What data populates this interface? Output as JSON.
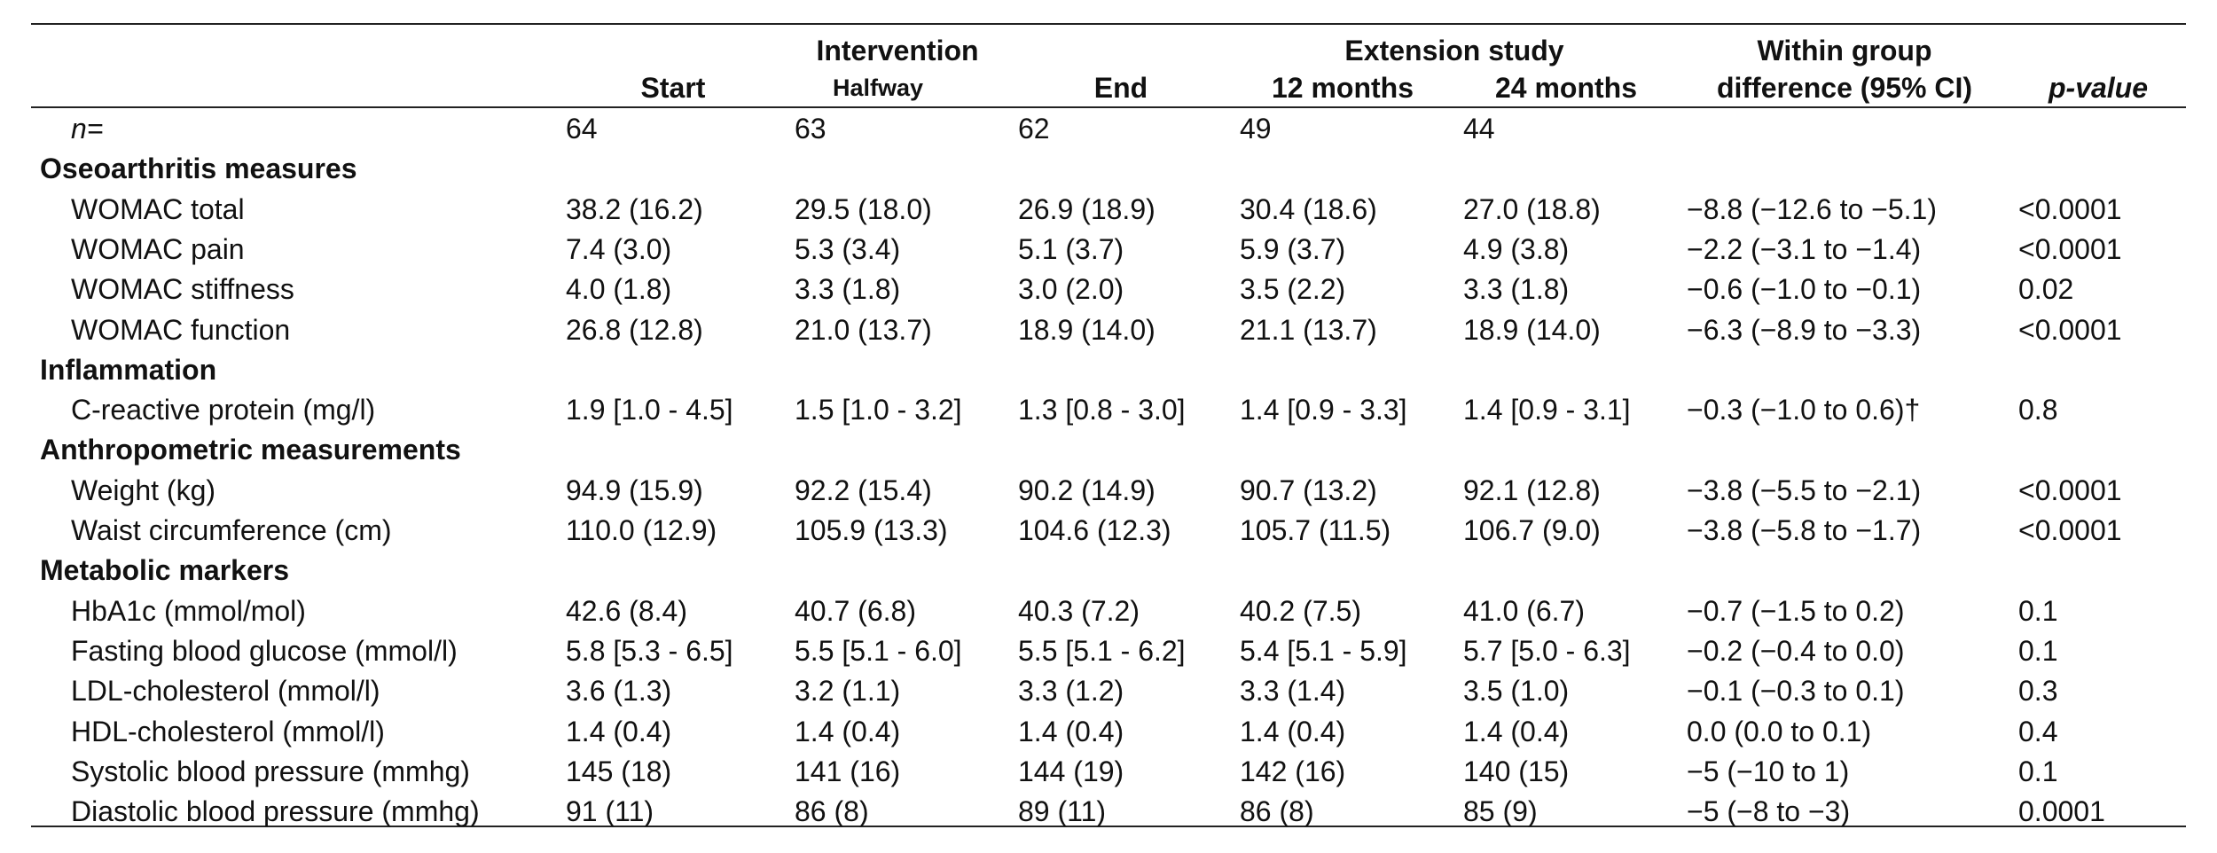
{
  "header": {
    "intervention": "Intervention",
    "extension": "Extension study",
    "columns": [
      "Start",
      "Halfway",
      "End",
      "12 months",
      "24 months"
    ],
    "difference": [
      "Within group",
      "difference (95% CI)"
    ],
    "p_value": "p-value"
  },
  "rows": [
    {
      "label": "n=",
      "cells": [
        "64",
        "63",
        "62",
        "49",
        "44",
        "",
        ""
      ]
    },
    {
      "heading": "Oseoarthritis measures"
    },
    {
      "label": "WOMAC total",
      "cells": [
        "38.2 (16.2)",
        "29.5 (18.0)",
        "26.9 (18.9)",
        "30.4 (18.6)",
        "27.0 (18.8)",
        "−8.8 (−12.6 to −5.1)",
        "<0.0001"
      ]
    },
    {
      "label": "WOMAC pain",
      "cells": [
        "7.4 (3.0)",
        "5.3 (3.4)",
        "5.1 (3.7)",
        "5.9 (3.7)",
        "4.9 (3.8)",
        "−2.2 (−3.1 to −1.4)",
        "<0.0001"
      ]
    },
    {
      "label": "WOMAC stiffness",
      "cells": [
        "4.0 (1.8)",
        "3.3 (1.8)",
        "3.0 (2.0)",
        "3.5 (2.2)",
        "3.3 (1.8)",
        "−0.6 (−1.0 to −0.1)",
        "0.02"
      ]
    },
    {
      "label": "WOMAC function",
      "cells": [
        "26.8 (12.8)",
        "21.0 (13.7)",
        "18.9 (14.0)",
        "21.1 (13.7)",
        "18.9 (14.0)",
        "−6.3 (−8.9 to −3.3)",
        "<0.0001"
      ]
    },
    {
      "heading": "Inflammation"
    },
    {
      "label": "C-reactive protein (mg/l)",
      "cells": [
        "1.9 [1.0 - 4.5]",
        "1.5 [1.0 - 3.2]",
        "1.3 [0.8 - 3.0]",
        "1.4 [0.9 - 3.3]",
        "1.4 [0.9 - 3.1]",
        "−0.3 (−1.0 to 0.6)†",
        "0.8"
      ]
    },
    {
      "heading": "Anthropometric measurements"
    },
    {
      "label": "Weight (kg)",
      "cells": [
        "94.9 (15.9)",
        "92.2 (15.4)",
        "90.2 (14.9)",
        "90.7 (13.2)",
        "92.1 (12.8)",
        "−3.8 (−5.5 to −2.1)",
        "<0.0001"
      ]
    },
    {
      "label": "Waist circumference (cm)",
      "cells": [
        "110.0 (12.9)",
        "105.9 (13.3)",
        "104.6 (12.3)",
        "105.7 (11.5)",
        "106.7 (9.0)",
        "−3.8 (−5.8 to −1.7)",
        "<0.0001"
      ]
    },
    {
      "heading": "Metabolic markers"
    },
    {
      "label": "HbA1c (mmol/mol)",
      "cells": [
        "42.6 (8.4)",
        "40.7 (6.8)",
        "40.3 (7.2)",
        "40.2 (7.5)",
        "41.0 (6.7)",
        "−0.7 (−1.5 to 0.2)",
        "0.1"
      ]
    },
    {
      "label": "Fasting blood glucose (mmol/l)",
      "cells": [
        "5.8 [5.3 - 6.5]",
        "5.5 [5.1 - 6.0]",
        "5.5 [5.1 - 6.2]",
        "5.4 [5.1 - 5.9]",
        "5.7 [5.0 - 6.3]",
        "−0.2 (−0.4 to 0.0)",
        "0.1"
      ]
    },
    {
      "label": "LDL-cholesterol (mmol/l)",
      "cells": [
        "3.6 (1.3)",
        "3.2 (1.1)",
        "3.3 (1.2)",
        "3.3 (1.4)",
        "3.5 (1.0)",
        "−0.1 (−0.3 to 0.1)",
        "0.3"
      ]
    },
    {
      "label": "HDL-cholesterol (mmol/l)",
      "cells": [
        "1.4 (0.4)",
        "1.4 (0.4)",
        "1.4 (0.4)",
        "1.4 (0.4)",
        "1.4 (0.4)",
        "0.0 (0.0 to 0.1)",
        "0.4"
      ]
    },
    {
      "label": "Systolic blood pressure (mmhg)",
      "cells": [
        "145 (18)",
        "141 (16)",
        "144 (19)",
        "142 (16)",
        "140 (15)",
        "−5 (−10 to 1)",
        "0.1"
      ]
    },
    {
      "label": "Diastolic blood pressure (mmhg)",
      "cells": [
        "91 (11)",
        "86 (8)",
        "89 (11)",
        "86 (8)",
        "85 (9)",
        "−5 (−8 to −3)",
        "0.0001"
      ]
    }
  ]
}
